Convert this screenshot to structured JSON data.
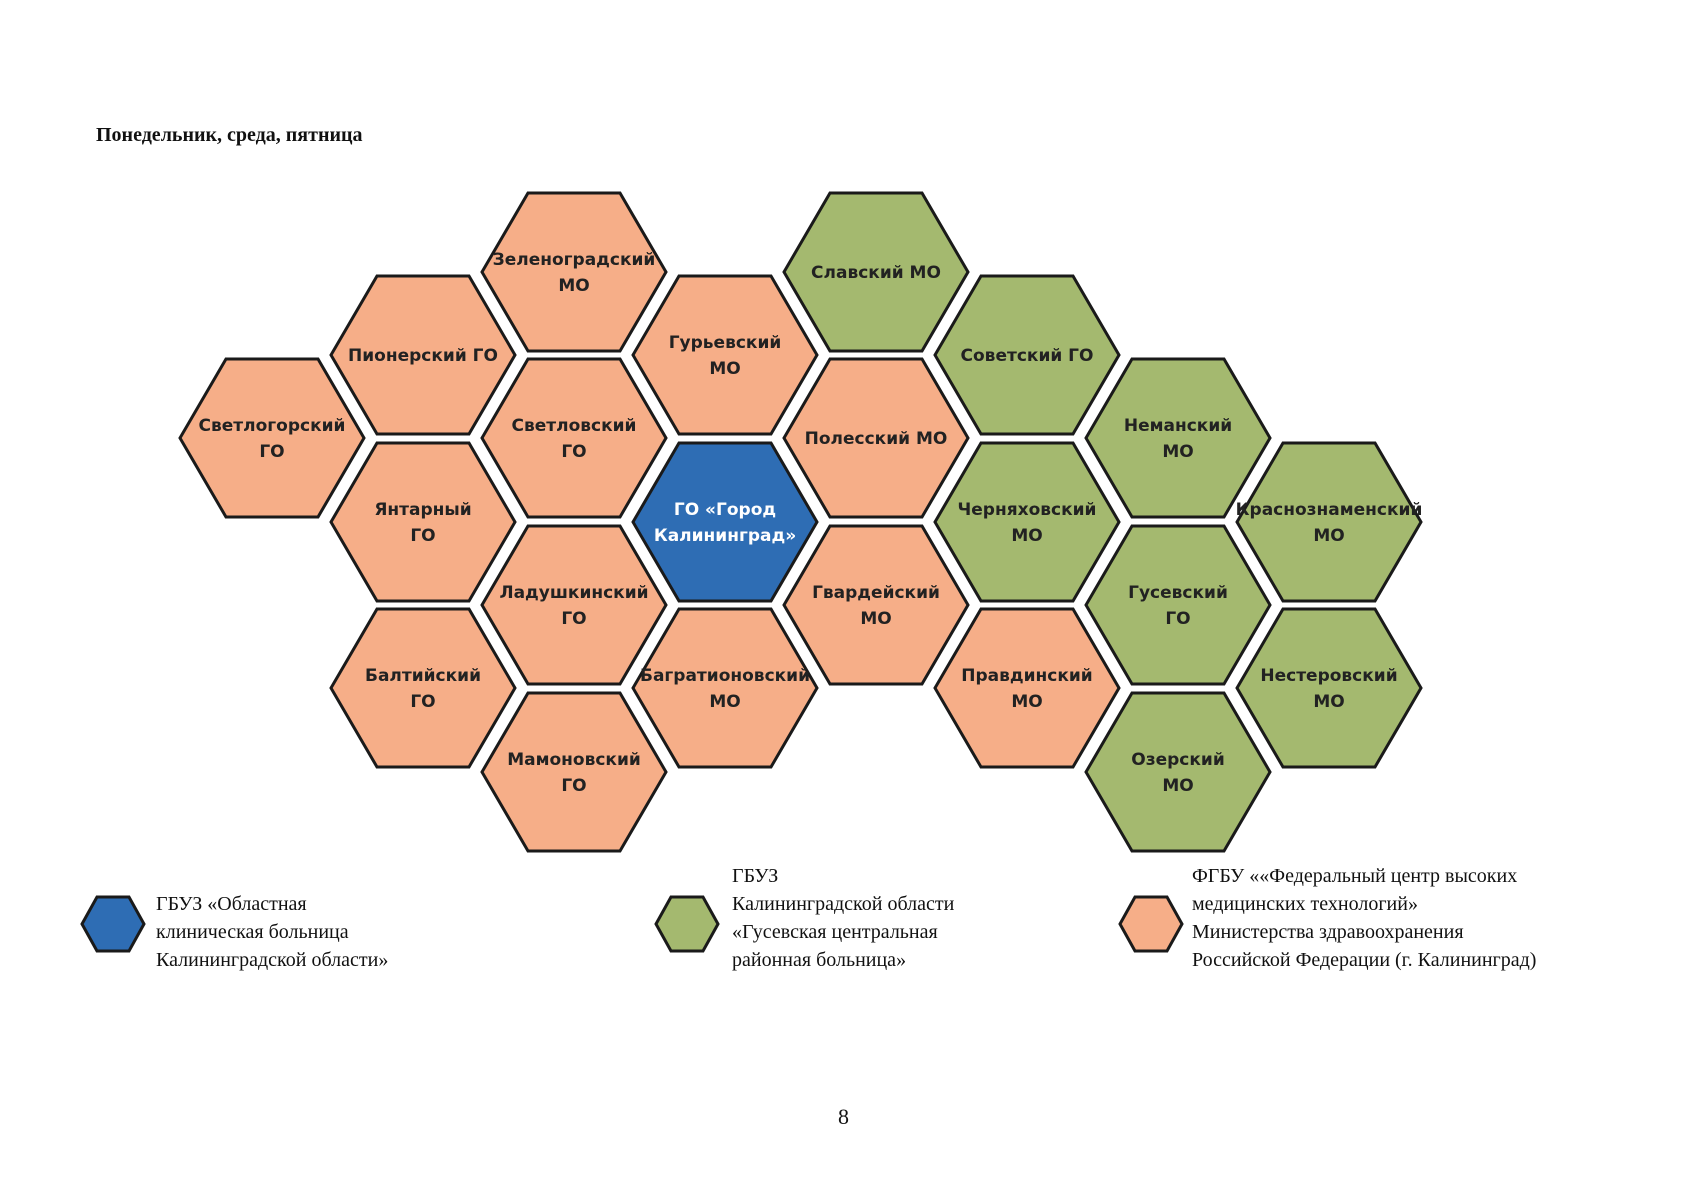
{
  "heading": "Понедельник, среда, пятница",
  "colors": {
    "blue": "#2E6DB4",
    "green": "#A4B96F",
    "orange": "#F6AE88",
    "stroke": "#1a1a1a"
  },
  "hexes": [
    {
      "id": "zelenogradsky",
      "lines": [
        "Зеленоградский",
        "МО"
      ],
      "color": "orange"
    },
    {
      "id": "pionersky",
      "lines": [
        "Пионерский ГО"
      ],
      "color": "orange"
    },
    {
      "id": "svetlogorsky",
      "lines": [
        "Светлогорский",
        "ГО"
      ],
      "color": "orange"
    },
    {
      "id": "svetlovsky",
      "lines": [
        "Светловский",
        "ГО"
      ],
      "color": "orange"
    },
    {
      "id": "yantarny",
      "lines": [
        "Янтарный",
        "ГО"
      ],
      "color": "orange"
    },
    {
      "id": "guryevsky",
      "lines": [
        "Гурьевский",
        "МО"
      ],
      "color": "orange"
    },
    {
      "id": "kaliningrad",
      "lines": [
        "ГО «Город",
        "Калининград»"
      ],
      "color": "blue"
    },
    {
      "id": "ladushkinsky",
      "lines": [
        "Ладушкинский",
        "ГО"
      ],
      "color": "orange"
    },
    {
      "id": "baltiysky",
      "lines": [
        "Балтийский",
        "ГО"
      ],
      "color": "orange"
    },
    {
      "id": "bagrationovsky",
      "lines": [
        "Багратионовский",
        "МО"
      ],
      "color": "orange"
    },
    {
      "id": "mamonovsky",
      "lines": [
        "Мамоновский",
        "ГО"
      ],
      "color": "orange"
    },
    {
      "id": "slavsky",
      "lines": [
        "Славский МО"
      ],
      "color": "green"
    },
    {
      "id": "polessky",
      "lines": [
        "Полесский МО"
      ],
      "color": "orange"
    },
    {
      "id": "gvardeysky",
      "lines": [
        "Гвардейский",
        "МО"
      ],
      "color": "orange"
    },
    {
      "id": "sovetsky",
      "lines": [
        "Советский ГО"
      ],
      "color": "green"
    },
    {
      "id": "chernyakhovsky",
      "lines": [
        "Черняховский",
        "МО"
      ],
      "color": "green"
    },
    {
      "id": "pravdinsky",
      "lines": [
        "Правдинский",
        "МО"
      ],
      "color": "orange"
    },
    {
      "id": "nemansky",
      "lines": [
        "Неманский",
        "МО"
      ],
      "color": "green"
    },
    {
      "id": "gusevsky",
      "lines": [
        "Гусевский",
        "ГО"
      ],
      "color": "green"
    },
    {
      "id": "ozersky",
      "lines": [
        "Озерский",
        "МО"
      ],
      "color": "green"
    },
    {
      "id": "krasnoznamensky",
      "lines": [
        "Краснознаменский",
        "МО"
      ],
      "color": "green"
    },
    {
      "id": "nesterovsky",
      "lines": [
        "Нестеровский",
        "МО"
      ],
      "color": "green"
    }
  ],
  "legend": [
    {
      "color": "blue",
      "lines": [
        "ГБУЗ «Областная",
        "клиническая больница",
        "Калининградской области»"
      ]
    },
    {
      "color": "green",
      "lines": [
        "ГБУЗ",
        "Калининградской области",
        "«Гусевская центральная",
        "районная больница»"
      ]
    },
    {
      "color": "orange",
      "lines": [
        "ФГБУ ««Федеральный центр высоких",
        "медицинских технологий»",
        "Министерства здравоохранения",
        "Российской Федерации (г. Калининград)"
      ]
    }
  ],
  "page_number": "8"
}
